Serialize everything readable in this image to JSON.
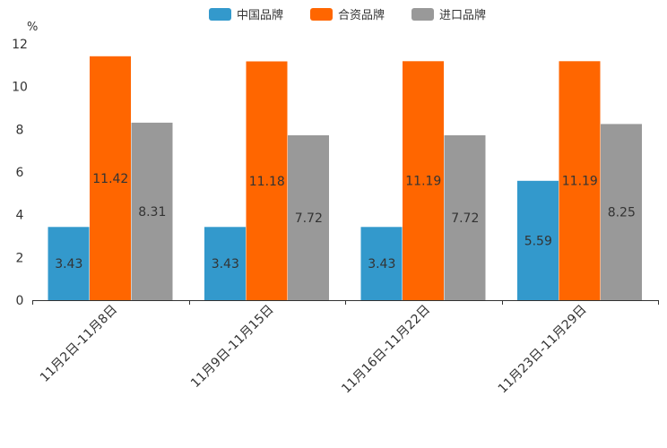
{
  "chart_data": {
    "type": "bar",
    "title": "",
    "ylabel": "%",
    "xlabel": "",
    "ylim": [
      0,
      12
    ],
    "yticks": [
      0,
      2,
      4,
      6,
      8,
      10,
      12
    ],
    "legend_position": "top-center",
    "grid": false,
    "categories": [
      "11月2日-11月8日",
      "11月9日-11月15日",
      "11月16日-11月22日",
      "11月23日-11月29日"
    ],
    "series": [
      {
        "name": "中国品牌",
        "color": "#3399cc",
        "values": [
          3.43,
          3.43,
          3.43,
          5.59
        ]
      },
      {
        "name": "合资品牌",
        "color": "#ff6600",
        "values": [
          11.42,
          11.18,
          11.19,
          11.19
        ]
      },
      {
        "name": "进口品牌",
        "color": "#999999",
        "values": [
          8.31,
          7.72,
          7.72,
          8.25
        ]
      }
    ]
  }
}
